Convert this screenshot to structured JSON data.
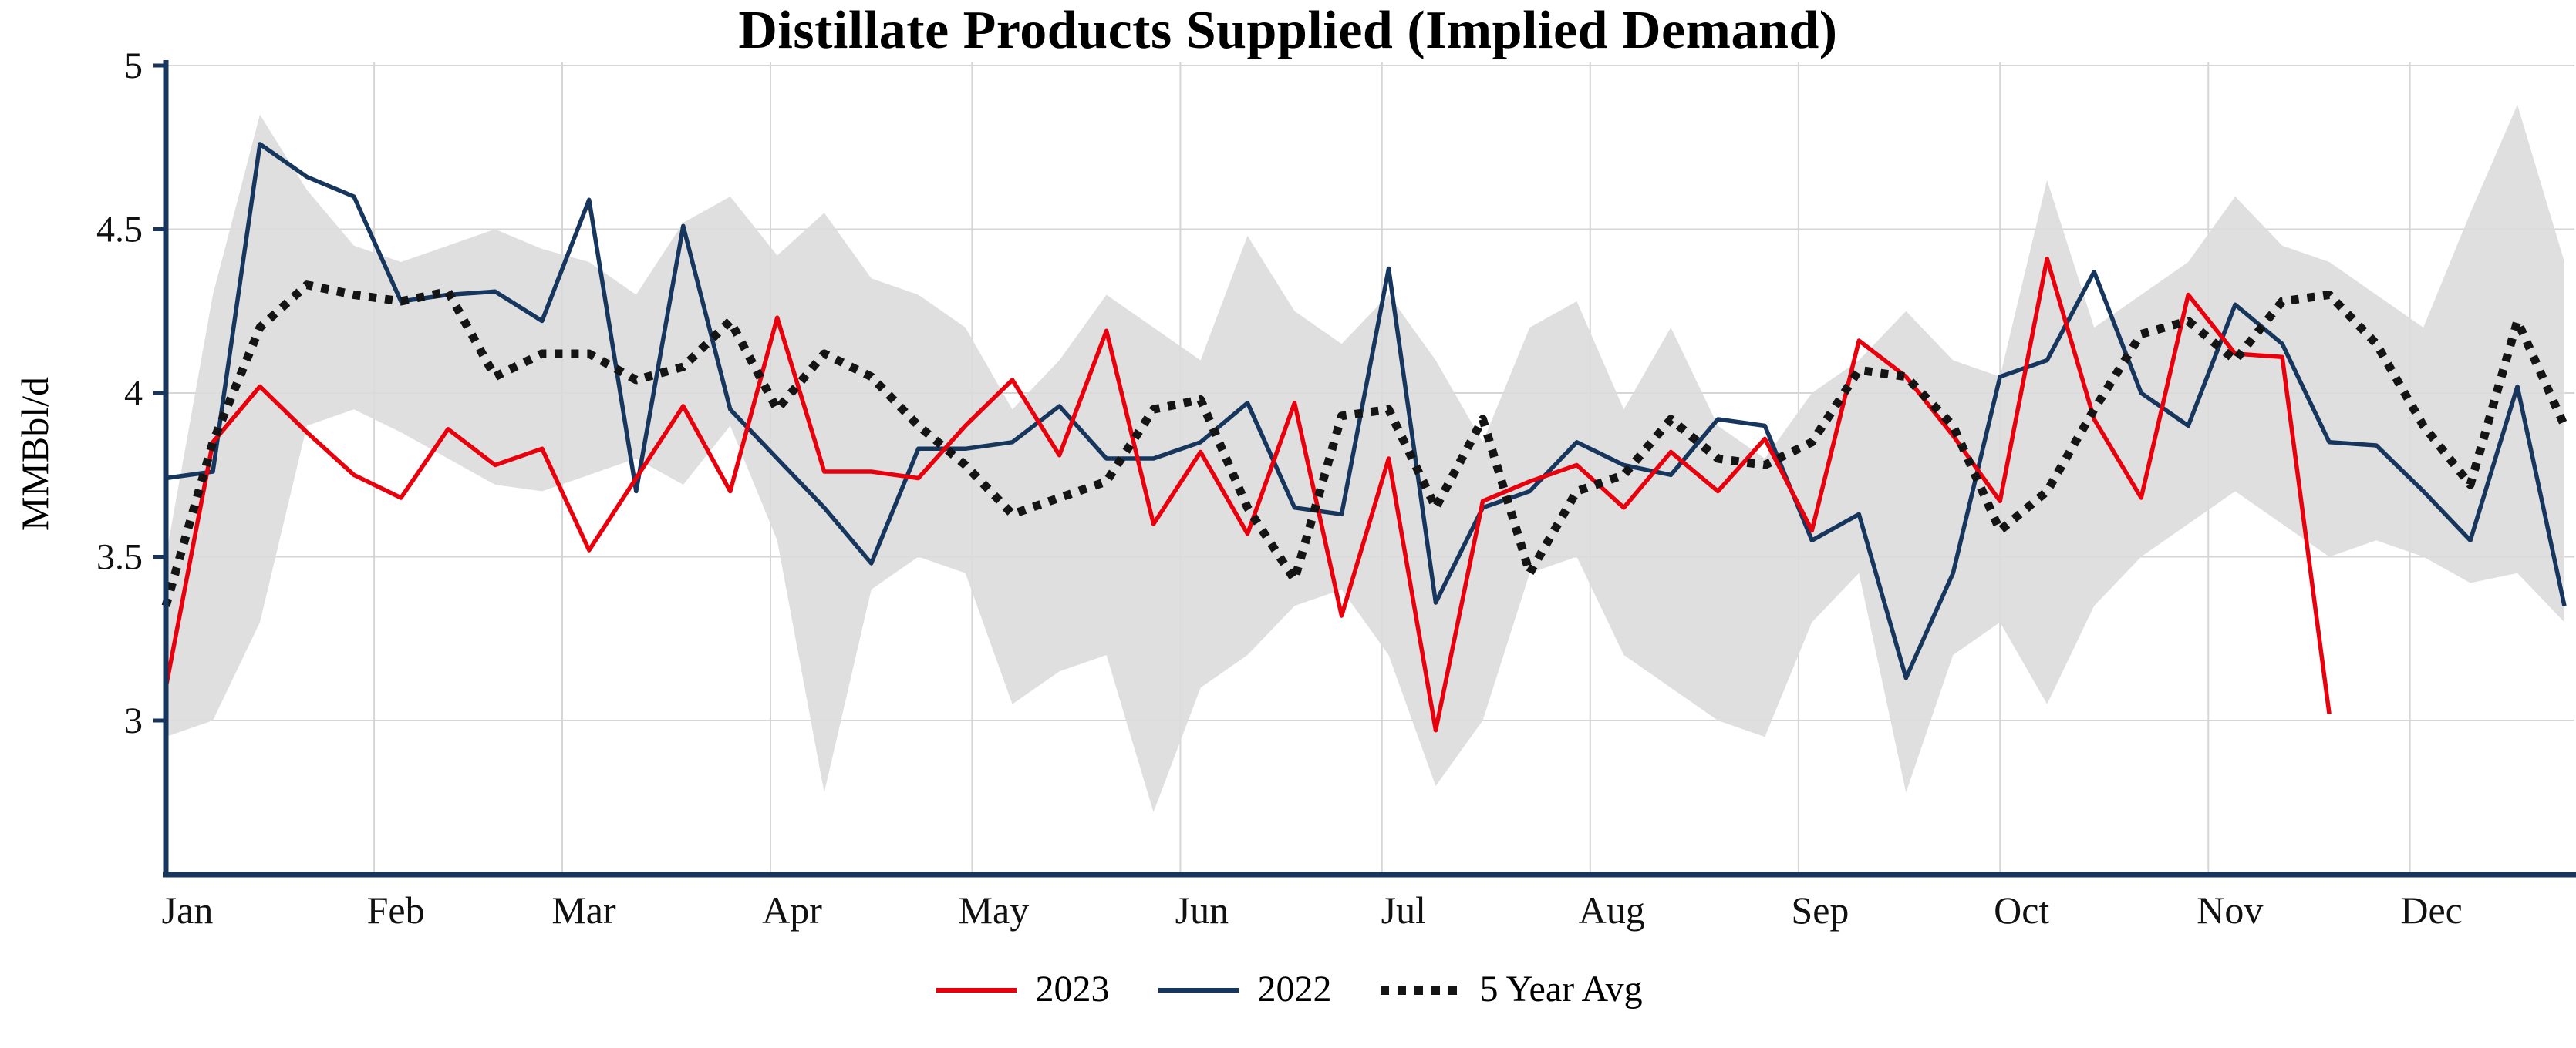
{
  "chart": {
    "title": "Distillate Products Supplied (Implied Demand)",
    "y_axis_label": "MMBbl/d"
  },
  "chart_data": {
    "type": "line",
    "title": "Distillate Products Supplied (Implied Demand)",
    "ylabel": "MMBbl/d",
    "x_axis": {
      "unit": "weekly, Jan through Dec",
      "tick_labels": [
        "Jan",
        "Feb",
        "Mar",
        "Apr",
        "May",
        "Jun",
        "Jul",
        "Aug",
        "Sep",
        "Oct",
        "Nov",
        "Dec"
      ]
    },
    "y_axis": {
      "ticks": [
        3,
        3.5,
        4,
        4.5,
        5
      ],
      "range": [
        2.53,
        5.0
      ]
    },
    "grid": true,
    "legend_position": "bottom",
    "colors": {
      "grid": "#d6d6d6",
      "axis": "#17365d",
      "band": "#dcdcdc"
    },
    "series": [
      {
        "name": "2023",
        "color": "#e8000d",
        "style": "solid",
        "start_week": 1,
        "values": [
          3.1,
          3.85,
          4.02,
          3.88,
          3.75,
          3.68,
          3.89,
          3.78,
          3.83,
          3.52,
          3.74,
          3.96,
          3.7,
          4.23,
          3.76,
          3.76,
          3.74,
          3.9,
          4.04,
          3.81,
          4.19,
          3.6,
          3.82,
          3.57,
          3.97,
          3.32,
          3.8,
          2.97,
          3.67,
          3.73,
          3.78,
          3.65,
          3.82,
          3.7,
          3.86,
          3.58,
          4.16,
          4.05,
          3.87,
          3.67,
          4.41,
          3.92,
          3.68,
          4.3,
          4.12,
          4.11,
          3.02
        ]
      },
      {
        "name": "2022",
        "color": "#17365d",
        "style": "solid",
        "start_week": 1,
        "values": [
          3.74,
          3.76,
          4.76,
          4.66,
          4.6,
          4.28,
          4.3,
          4.31,
          4.22,
          4.59,
          3.7,
          4.51,
          3.95,
          3.8,
          3.65,
          3.48,
          3.83,
          3.83,
          3.85,
          3.96,
          3.8,
          3.8,
          3.85,
          3.97,
          3.65,
          3.63,
          4.38,
          3.36,
          3.65,
          3.7,
          3.85,
          3.78,
          3.75,
          3.92,
          3.9,
          3.55,
          3.63,
          3.13,
          3.45,
          4.05,
          4.1,
          4.37,
          4.0,
          3.9,
          4.27,
          4.15,
          3.85,
          3.84,
          3.7,
          3.55,
          4.02,
          3.35
        ]
      },
      {
        "name": "5 Year Avg",
        "color": "#141414",
        "style": "dotted",
        "start_week": 1,
        "values": [
          3.35,
          3.85,
          4.2,
          4.33,
          4.3,
          4.28,
          4.31,
          4.05,
          4.12,
          4.12,
          4.04,
          4.08,
          4.22,
          3.95,
          4.12,
          4.05,
          3.9,
          3.78,
          3.63,
          3.68,
          3.73,
          3.95,
          3.98,
          3.65,
          3.43,
          3.93,
          3.95,
          3.65,
          3.92,
          3.45,
          3.7,
          3.75,
          3.92,
          3.8,
          3.78,
          3.85,
          4.07,
          4.05,
          3.9,
          3.58,
          3.7,
          3.95,
          4.18,
          4.22,
          4.1,
          4.28,
          4.3,
          4.15,
          3.9,
          3.72,
          4.22,
          3.9
        ]
      }
    ],
    "band": {
      "description": "shaded 5-year min-max range",
      "upper": [
        3.5,
        4.3,
        4.85,
        4.62,
        4.45,
        4.4,
        4.45,
        4.5,
        4.44,
        4.4,
        4.3,
        4.52,
        4.6,
        4.42,
        4.55,
        4.35,
        4.3,
        4.2,
        3.95,
        4.1,
        4.3,
        4.2,
        4.1,
        4.48,
        4.25,
        4.15,
        4.3,
        4.1,
        3.85,
        4.2,
        4.28,
        3.95,
        4.2,
        3.9,
        3.8,
        4.0,
        4.1,
        4.25,
        4.1,
        4.05,
        4.65,
        4.2,
        4.3,
        4.4,
        4.6,
        4.45,
        4.4,
        4.3,
        4.2,
        4.55,
        4.88,
        4.4
      ],
      "lower": [
        2.95,
        3.0,
        3.3,
        3.9,
        3.95,
        3.88,
        3.8,
        3.72,
        3.7,
        3.75,
        3.8,
        3.72,
        3.9,
        3.55,
        2.78,
        3.4,
        3.5,
        3.45,
        3.05,
        3.15,
        3.2,
        2.72,
        3.1,
        3.2,
        3.35,
        3.4,
        3.2,
        2.8,
        3.0,
        3.45,
        3.5,
        3.2,
        3.1,
        3.0,
        2.95,
        3.3,
        3.45,
        2.78,
        3.2,
        3.3,
        3.05,
        3.35,
        3.5,
        3.6,
        3.7,
        3.6,
        3.5,
        3.55,
        3.5,
        3.42,
        3.45,
        3.3
      ]
    }
  }
}
